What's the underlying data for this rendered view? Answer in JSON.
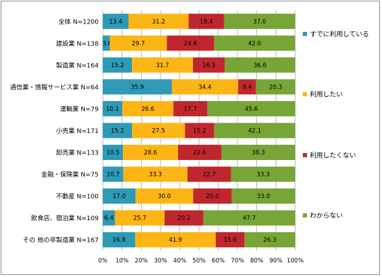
{
  "chart_data": {
    "type": "bar",
    "orientation": "horizontal",
    "stacked": "percent",
    "categories": [
      "全体 N=1200",
      "建設業 N=138",
      "製造業 N=164",
      "通信業・情報サービス業 N=64",
      "運輸業 N=79",
      "小売業 N=171",
      "卸売業 N=133",
      "金融・保険業 N=75",
      "不動産 N=100",
      "飲食店、宿泊業 N=109",
      "その 他の非製造業 N=167"
    ],
    "series": [
      {
        "name": "すでに利用している",
        "color": "#2e9ab5",
        "values": [
          13.4,
          3.6,
          15.2,
          35.9,
          10.1,
          15.2,
          10.5,
          10.7,
          17.0,
          6.4,
          16.8
        ]
      },
      {
        "name": "利用したい",
        "color": "#fdb515",
        "values": [
          31.2,
          29.7,
          31.7,
          34.4,
          26.6,
          27.5,
          28.6,
          33.3,
          30.0,
          25.7,
          41.9
        ]
      },
      {
        "name": "利用したくない",
        "color": "#c0272d",
        "values": [
          18.4,
          24.6,
          16.5,
          9.4,
          17.7,
          15.2,
          22.6,
          22.7,
          20.0,
          20.2,
          15.0
        ]
      },
      {
        "name": "わからない",
        "color": "#77a536",
        "values": [
          37.0,
          42.0,
          36.6,
          20.3,
          45.6,
          42.1,
          38.3,
          33.3,
          33.0,
          47.7,
          26.3
        ]
      }
    ],
    "xlim": [
      0,
      100
    ],
    "x_ticks": [
      "0%",
      "10%",
      "20%",
      "30%",
      "40%",
      "50%",
      "60%",
      "70%",
      "80%",
      "90%",
      "100%"
    ],
    "grid": "vertical",
    "legend_position": "right"
  }
}
